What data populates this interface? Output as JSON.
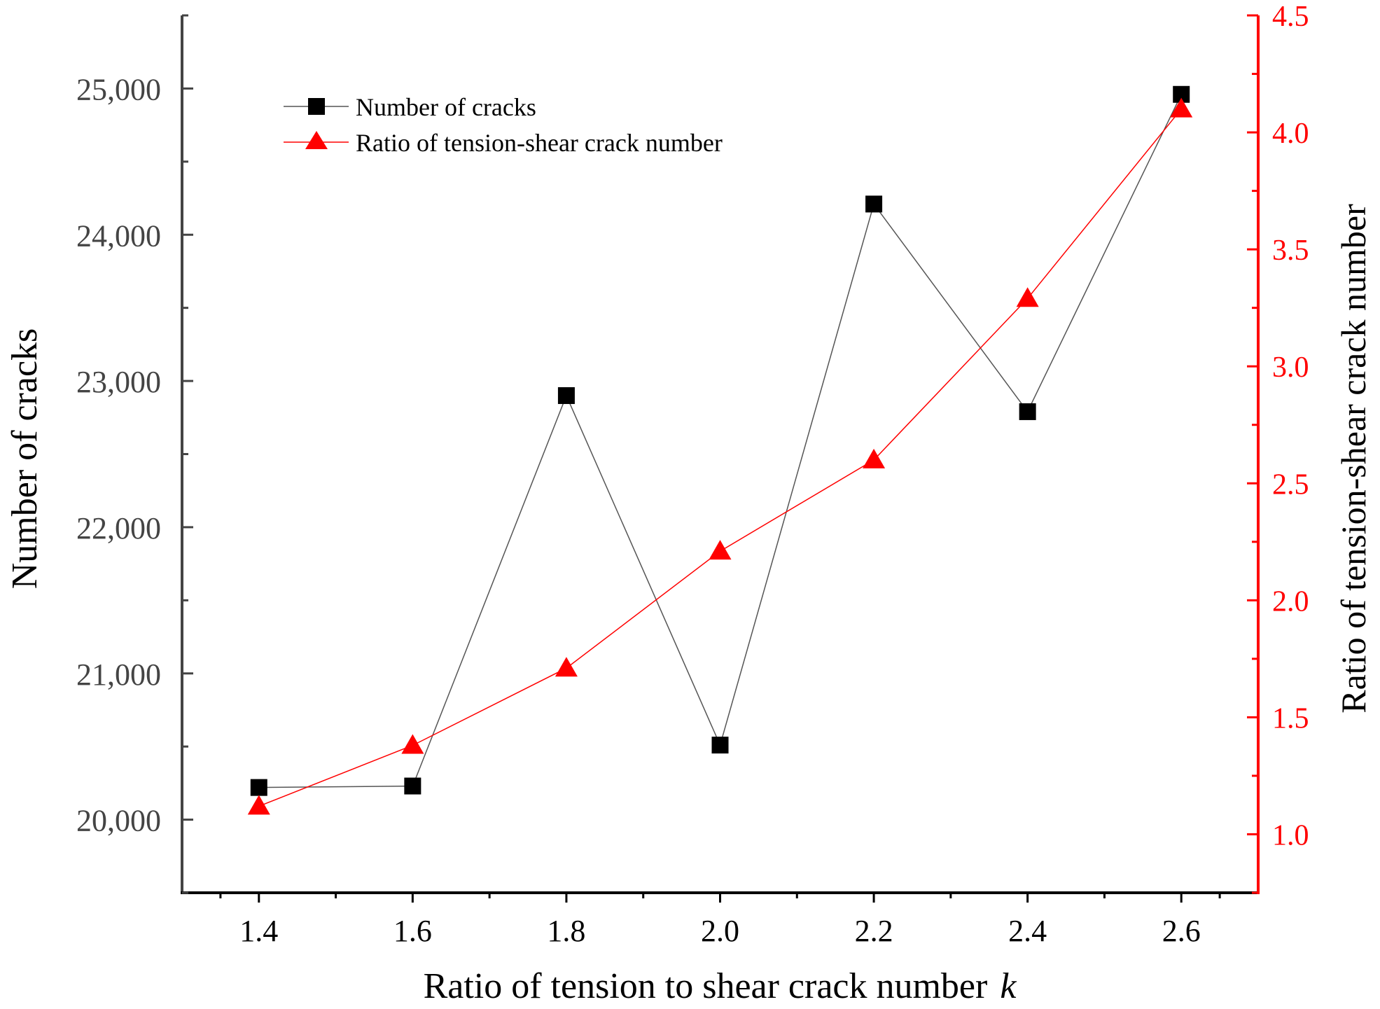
{
  "chart_data": {
    "type": "line",
    "title": "",
    "xlabel": "Ratio of tension to shear crack number",
    "xlabel_italic": "k",
    "ylabel": "Number of cracks",
    "y2label": "Ratio of tension-shear crack number",
    "xlim": [
      1.3,
      2.7
    ],
    "ylim": [
      19500,
      25500
    ],
    "y2lim": [
      0.75,
      4.5
    ],
    "x": [
      1.4,
      1.6,
      1.8,
      2.0,
      2.2,
      2.4,
      2.6
    ],
    "x_ticks": [
      "1.4",
      "1.6",
      "1.8",
      "2.0",
      "2.2",
      "2.4",
      "2.6"
    ],
    "y_ticks": [
      20000,
      21000,
      22000,
      23000,
      24000,
      25000
    ],
    "y_tick_labels": [
      "20,000",
      "21,000",
      "22,000",
      "23,000",
      "24,000",
      "25,000"
    ],
    "y2_ticks": [
      1.0,
      1.5,
      2.0,
      2.5,
      3.0,
      3.5,
      4.0,
      4.5
    ],
    "y2_tick_labels": [
      "1.0",
      "1.5",
      "2.0",
      "2.5",
      "3.0",
      "3.5",
      "4.0",
      "4.5"
    ],
    "series": [
      {
        "name": "Number of cracks",
        "axis": "left",
        "marker": "square",
        "color": "#000000",
        "values": [
          20220,
          20230,
          22900,
          20510,
          24210,
          22790,
          24960
        ]
      },
      {
        "name": "Ratio of tension-shear crack number",
        "axis": "right",
        "marker": "triangle",
        "color": "#ff0000",
        "values": [
          1.12,
          1.38,
          1.71,
          2.21,
          2.6,
          3.29,
          4.1
        ]
      }
    ],
    "legend": [
      "Number of cracks",
      "Ratio of tension-shear crack number"
    ],
    "legend_position": "top-left"
  }
}
